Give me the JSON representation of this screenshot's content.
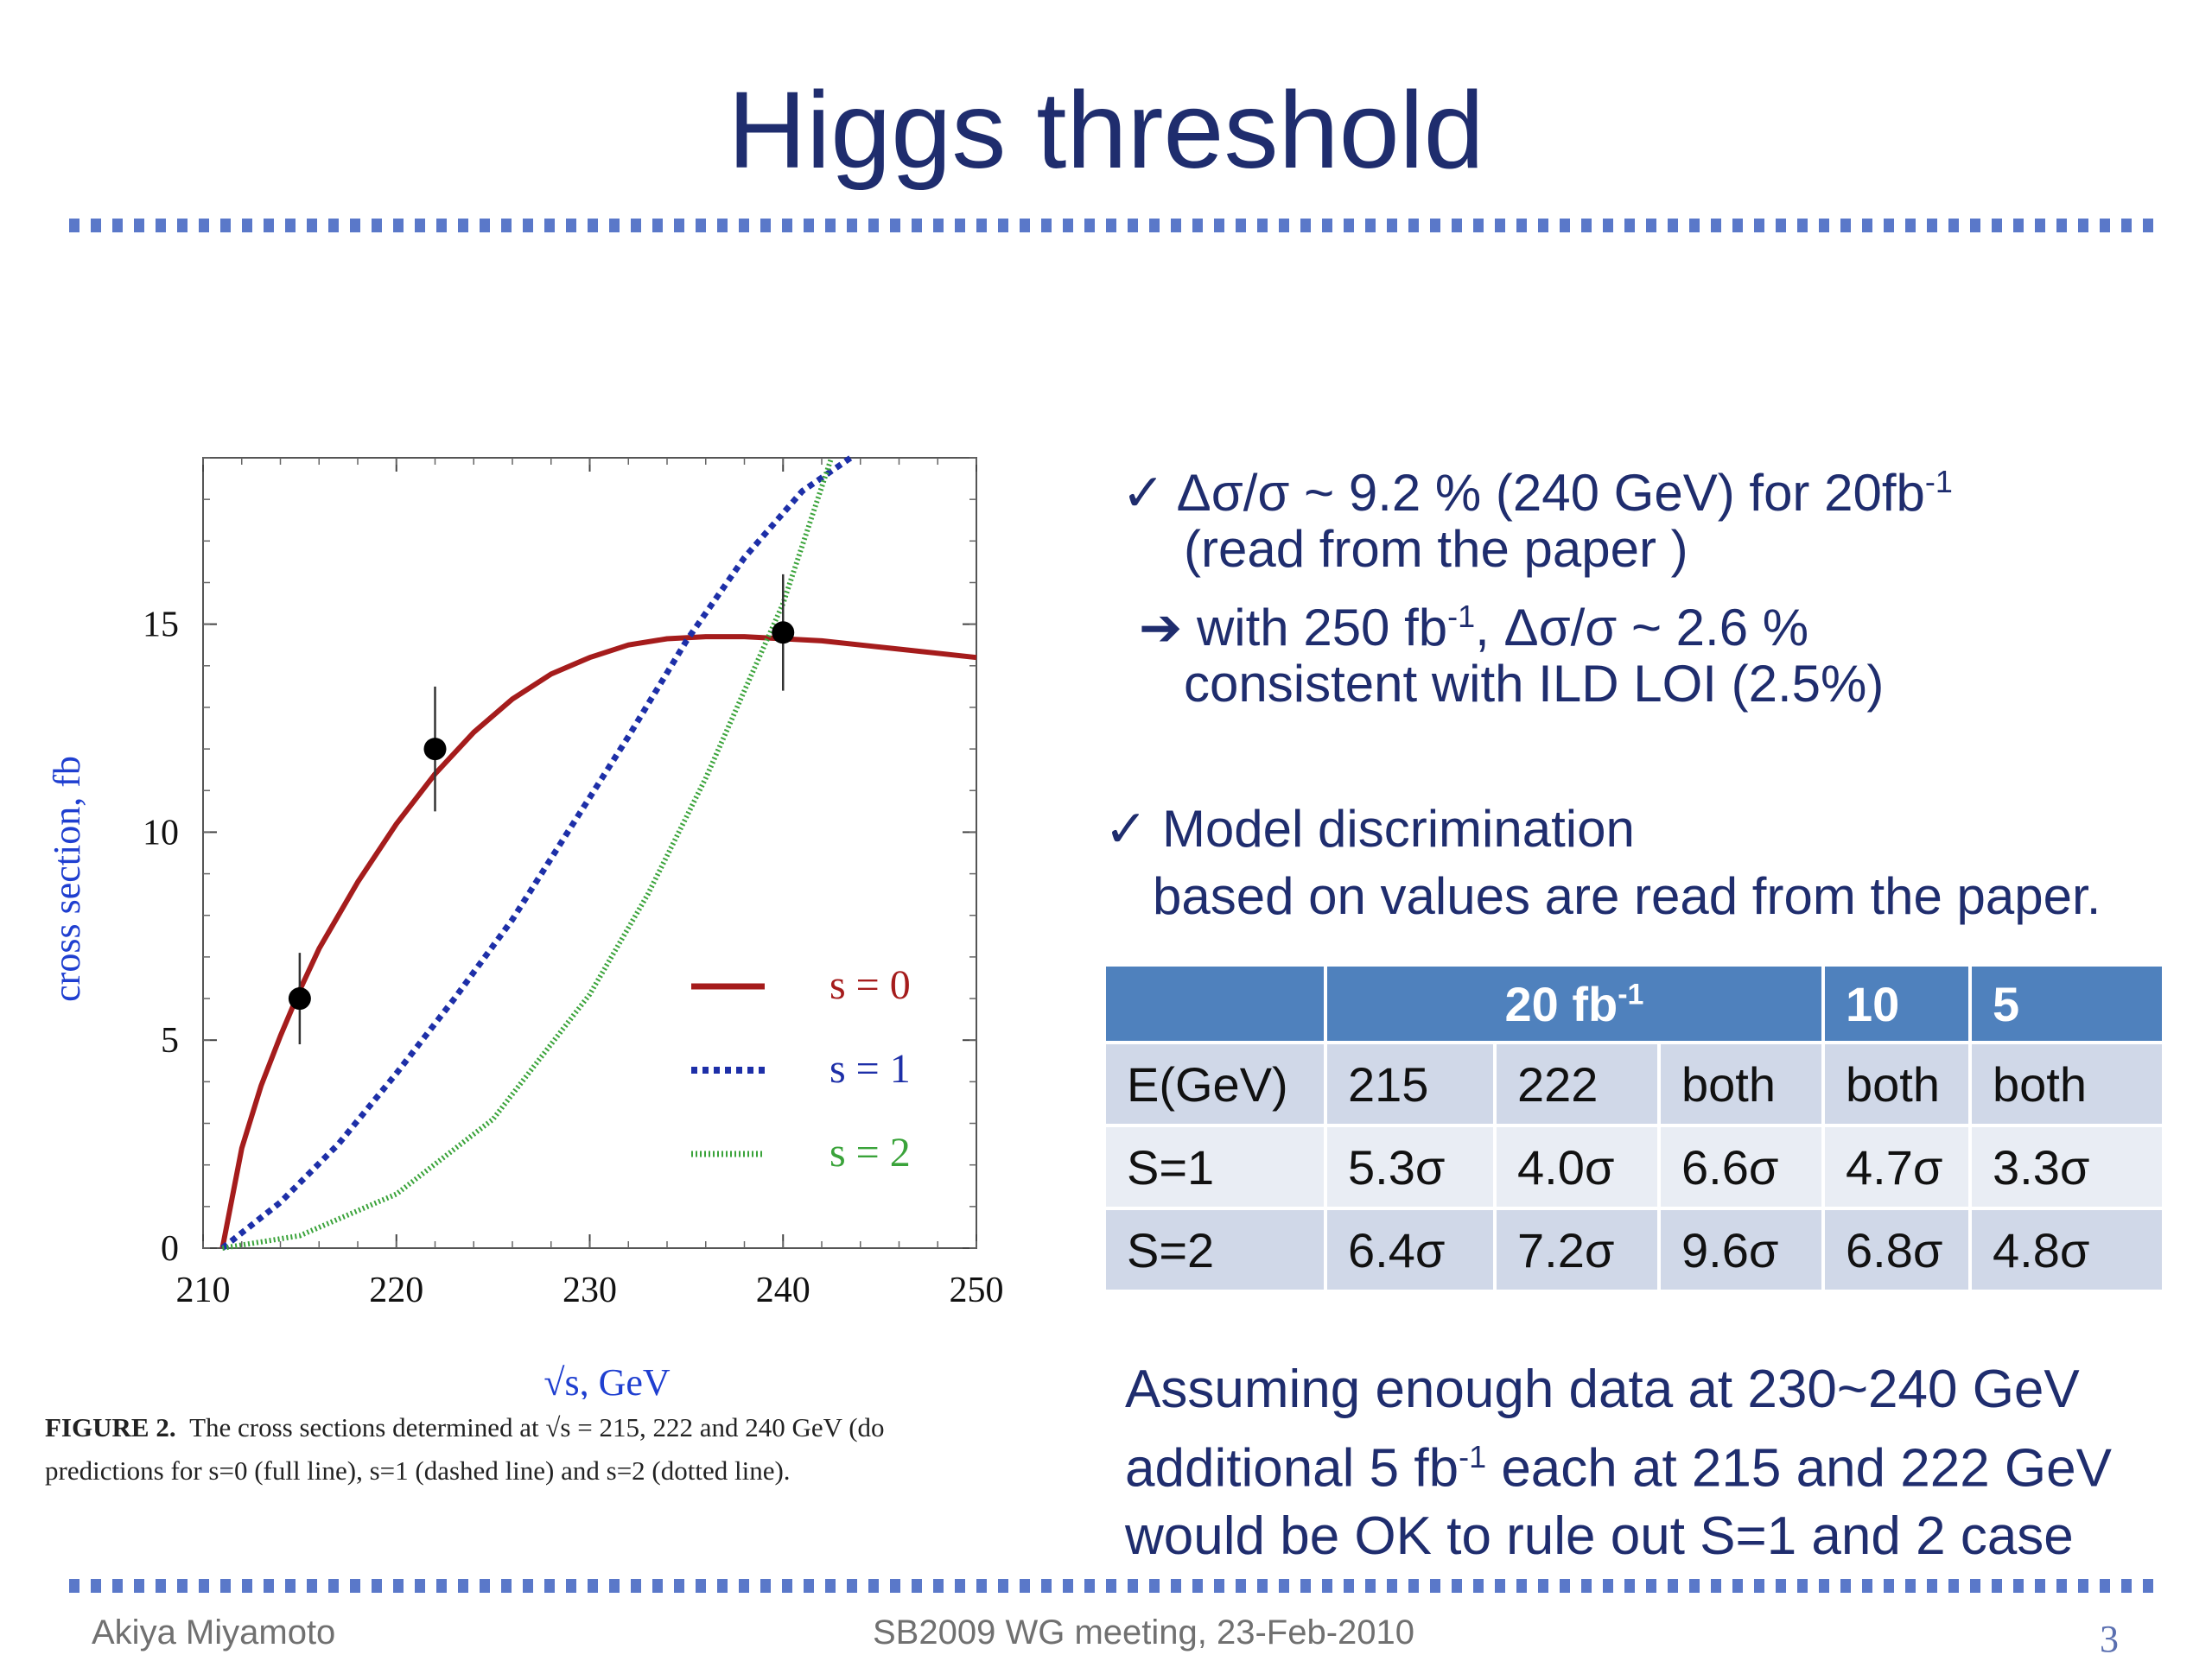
{
  "slide": {
    "title": "Higgs threshold",
    "page_number": "3"
  },
  "chart_data": {
    "type": "scatter",
    "xlabel": "√s, GeV",
    "ylabel": "cross section, fb",
    "xlim": [
      210,
      250
    ],
    "ylim": [
      0,
      19
    ],
    "x_ticks": [
      "210",
      "220",
      "230",
      "240",
      "250"
    ],
    "y_ticks": [
      "0",
      "5",
      "10",
      "15"
    ],
    "points": [
      {
        "x": 215,
        "y": 6.0,
        "err": 1.1
      },
      {
        "x": 222,
        "y": 12.0,
        "err": 1.5
      },
      {
        "x": 240,
        "y": 14.8,
        "err": 1.4
      }
    ],
    "series": [
      {
        "name": "s = 0",
        "style": "solid",
        "color": "#a51c1c",
        "x": [
          211,
          212,
          213,
          214,
          215,
          216,
          218,
          220,
          222,
          224,
          226,
          228,
          230,
          232,
          234,
          236,
          238,
          240,
          242,
          244,
          246,
          248,
          250
        ],
        "y": [
          0,
          2.4,
          3.9,
          5.1,
          6.2,
          7.2,
          8.8,
          10.2,
          11.4,
          12.4,
          13.2,
          13.8,
          14.2,
          14.5,
          14.65,
          14.7,
          14.7,
          14.65,
          14.6,
          14.5,
          14.4,
          14.3,
          14.2
        ]
      },
      {
        "name": "s = 1",
        "style": "dashed",
        "color": "#1d2fa8",
        "x": [
          211,
          214,
          217,
          220,
          223,
          226,
          229,
          232,
          235,
          238,
          241,
          243.5
        ],
        "y": [
          0,
          1.1,
          2.5,
          4.2,
          6.0,
          7.9,
          10.1,
          12.3,
          14.6,
          16.6,
          18.2,
          19.0
        ]
      },
      {
        "name": "s = 2",
        "style": "dotted",
        "color": "#3aa33a",
        "x": [
          211,
          215,
          220,
          225,
          230,
          233,
          236,
          238,
          240,
          242.5
        ],
        "y": [
          0,
          0.3,
          1.3,
          3.1,
          6.1,
          8.5,
          11.3,
          13.4,
          15.5,
          19.0
        ]
      }
    ],
    "legend_position": "lower-right"
  },
  "caption": {
    "label": "FIGURE 2.",
    "line1": "The cross sections determined at √s = 215, 222 and 240 GeV (do",
    "line2": "predictions for s=0 (full line), s=1 (dashed line) and s=2 (dotted line)."
  },
  "bullets": {
    "check": "✓",
    "arrow": "➔",
    "b1_line1_a": "Δσ/σ ~ 9.2 % (240 GeV) for 20fb",
    "b1_line1_sup": "-1",
    "b1_line2": "(read from the paper )",
    "b1_line3_a": "with 250 fb",
    "b1_line3_sup": "-1",
    "b1_line3_b": ", Δσ/σ ~ 2.6 %",
    "b1_line4": "consistent with ILD LOI (2.5%)",
    "b2_line1": "Model discrimination",
    "b2_line2": "based on values are read from the paper."
  },
  "table": {
    "header": {
      "blank": "",
      "col20_a": "20 fb",
      "col20_sup": "-1",
      "col10": "10",
      "col5": "5"
    },
    "rows": [
      [
        "E(GeV)",
        "215",
        "222",
        "both",
        "both",
        "both"
      ],
      [
        "S=1",
        "5.3σ",
        "4.0σ",
        "6.6σ",
        "4.7σ",
        "3.3σ"
      ],
      [
        "S=2",
        "6.4σ",
        "7.2σ",
        "9.6σ",
        "6.8σ",
        "4.8σ"
      ]
    ]
  },
  "assume": {
    "line1": "Assuming enough data at 230~240 GeV",
    "line2_a": "additional 5 fb",
    "line2_sup": "-1",
    "line2_b": " each at 215 and 222 GeV",
    "line3": "would be OK to rule out S=1 and 2 case"
  },
  "footer": {
    "author": "Akiya Miyamoto",
    "meeting": "SB2009 WG meeting, 23-Feb-2010"
  }
}
